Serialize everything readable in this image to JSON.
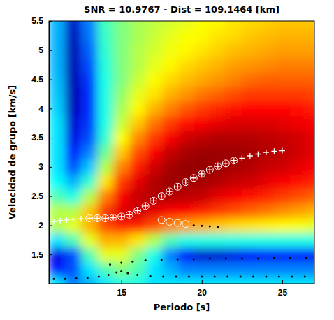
{
  "chart_data": {
    "type": "heatmap",
    "title": "SNR = 10.9767 - Dist = 109.1464 [km]",
    "x_label": "Periodo [s]",
    "y_label": "Velocidad de grupo [km/s]",
    "xlim": [
      10.5,
      27
    ],
    "ylim": [
      1,
      5.5
    ],
    "xticks": [
      15,
      20,
      25
    ],
    "yticks": [
      1.5,
      2,
      2.5,
      3,
      3.5,
      4,
      4.5,
      5,
      5.5
    ],
    "x": [
      11,
      12,
      13,
      14,
      15,
      16,
      17,
      18,
      19,
      20,
      21,
      22,
      23,
      24,
      25,
      26,
      27
    ],
    "y": [
      1,
      1.25,
      1.5,
      1.75,
      2,
      2.25,
      2.5,
      2.75,
      3,
      3.25,
      3.5,
      3.75,
      4,
      4.25,
      4.5,
      4.75,
      5,
      5.25,
      5.5
    ],
    "zlim": [
      0,
      1
    ],
    "z": [
      [
        0.35,
        0.25,
        0.3,
        0.35,
        0.4,
        0.4,
        0.35,
        0.35,
        0.35,
        0.35,
        0.35,
        0.35,
        0.35,
        0.35,
        0.35,
        0.35,
        0.35
      ],
      [
        0.15,
        0.2,
        0.35,
        0.45,
        0.5,
        0.45,
        0.35,
        0.3,
        0.25,
        0.25,
        0.25,
        0.25,
        0.25,
        0.25,
        0.25,
        0.25,
        0.25
      ],
      [
        0.1,
        0.2,
        0.45,
        0.6,
        0.6,
        0.5,
        0.4,
        0.25,
        0.12,
        0.08,
        0.08,
        0.1,
        0.12,
        0.15,
        0.15,
        0.15,
        0.15
      ],
      [
        0.35,
        0.45,
        0.6,
        0.7,
        0.7,
        0.65,
        0.55,
        0.45,
        0.4,
        0.4,
        0.4,
        0.4,
        0.4,
        0.4,
        0.4,
        0.4,
        0.4
      ],
      [
        0.55,
        0.6,
        0.7,
        0.8,
        0.85,
        0.85,
        0.8,
        0.75,
        0.72,
        0.7,
        0.68,
        0.66,
        0.65,
        0.64,
        0.63,
        0.62,
        0.6
      ],
      [
        0.55,
        0.55,
        0.68,
        0.82,
        0.9,
        0.92,
        0.9,
        0.88,
        0.87,
        0.85,
        0.82,
        0.8,
        0.78,
        0.76,
        0.74,
        0.72,
        0.7
      ],
      [
        0.45,
        0.4,
        0.55,
        0.75,
        0.88,
        0.93,
        0.95,
        0.95,
        0.94,
        0.93,
        0.9,
        0.88,
        0.86,
        0.84,
        0.82,
        0.8,
        0.78
      ],
      [
        0.38,
        0.3,
        0.42,
        0.65,
        0.82,
        0.9,
        0.95,
        0.97,
        0.97,
        0.96,
        0.95,
        0.93,
        0.92,
        0.9,
        0.88,
        0.86,
        0.84
      ],
      [
        0.35,
        0.2,
        0.32,
        0.55,
        0.75,
        0.85,
        0.92,
        0.96,
        0.98,
        0.98,
        0.97,
        0.96,
        0.95,
        0.93,
        0.92,
        0.9,
        0.88
      ],
      [
        0.35,
        0.15,
        0.25,
        0.48,
        0.68,
        0.8,
        0.88,
        0.93,
        0.96,
        0.97,
        0.97,
        0.97,
        0.96,
        0.95,
        0.94,
        0.92,
        0.9
      ],
      [
        0.35,
        0.1,
        0.2,
        0.42,
        0.62,
        0.74,
        0.82,
        0.88,
        0.92,
        0.94,
        0.95,
        0.95,
        0.95,
        0.94,
        0.93,
        0.92,
        0.9
      ],
      [
        0.35,
        0.08,
        0.18,
        0.4,
        0.57,
        0.68,
        0.76,
        0.82,
        0.86,
        0.88,
        0.9,
        0.91,
        0.91,
        0.91,
        0.9,
        0.89,
        0.88
      ],
      [
        0.33,
        0.06,
        0.17,
        0.4,
        0.54,
        0.63,
        0.7,
        0.75,
        0.79,
        0.82,
        0.84,
        0.86,
        0.87,
        0.87,
        0.87,
        0.86,
        0.85
      ],
      [
        0.32,
        0.05,
        0.17,
        0.4,
        0.52,
        0.6,
        0.65,
        0.7,
        0.73,
        0.76,
        0.78,
        0.8,
        0.82,
        0.82,
        0.82,
        0.82,
        0.81
      ],
      [
        0.31,
        0.05,
        0.18,
        0.4,
        0.5,
        0.57,
        0.62,
        0.66,
        0.69,
        0.71,
        0.73,
        0.75,
        0.77,
        0.78,
        0.78,
        0.78,
        0.78
      ],
      [
        0.3,
        0.05,
        0.2,
        0.41,
        0.5,
        0.55,
        0.6,
        0.63,
        0.66,
        0.68,
        0.7,
        0.72,
        0.73,
        0.74,
        0.75,
        0.75,
        0.75
      ],
      [
        0.3,
        0.05,
        0.22,
        0.42,
        0.5,
        0.55,
        0.58,
        0.61,
        0.63,
        0.65,
        0.67,
        0.69,
        0.7,
        0.71,
        0.72,
        0.72,
        0.72
      ],
      [
        0.3,
        0.06,
        0.24,
        0.43,
        0.5,
        0.54,
        0.57,
        0.6,
        0.62,
        0.63,
        0.65,
        0.66,
        0.68,
        0.69,
        0.7,
        0.7,
        0.7
      ],
      [
        0.3,
        0.07,
        0.25,
        0.44,
        0.5,
        0.54,
        0.56,
        0.58,
        0.6,
        0.62,
        0.63,
        0.65,
        0.66,
        0.67,
        0.68,
        0.68,
        0.68
      ]
    ],
    "series": [
      {
        "type": "scatter",
        "marker": "circle",
        "color": "#ffffff",
        "x": [
          13,
          13.5,
          14,
          14.5,
          15,
          15.5,
          16,
          16.5,
          17,
          17.5,
          18,
          18.5,
          19,
          19.5,
          20,
          20.5,
          21,
          21.5,
          22,
          17.5,
          18,
          18.5,
          19
        ],
        "values": [
          2.12,
          2.12,
          2.12,
          2.13,
          2.15,
          2.18,
          2.25,
          2.33,
          2.42,
          2.5,
          2.58,
          2.66,
          2.74,
          2.81,
          2.88,
          2.95,
          3.01,
          3.06,
          3.11,
          2.09,
          2.06,
          2.04,
          2.02
        ]
      },
      {
        "type": "scatter",
        "marker": "plus",
        "color": "#ffffff",
        "x": [
          10.8,
          11.2,
          11.6,
          12,
          12.5,
          13,
          13.5,
          14,
          14.5,
          15,
          15.5,
          16,
          16.5,
          17,
          17.5,
          18,
          18.5,
          19,
          19.5,
          20,
          20.5,
          21,
          21.5,
          22,
          22.5,
          23,
          23.5,
          24,
          24.5,
          25
        ],
        "values": [
          2.06,
          2.08,
          2.09,
          2.1,
          2.11,
          2.12,
          2.12,
          2.12,
          2.13,
          2.15,
          2.18,
          2.25,
          2.33,
          2.42,
          2.5,
          2.58,
          2.66,
          2.74,
          2.81,
          2.88,
          2.95,
          3.01,
          3.06,
          3.11,
          3.15,
          3.19,
          3.22,
          3.25,
          3.27,
          3.28
        ]
      },
      {
        "type": "scatter",
        "marker": "dot",
        "color": "#000000",
        "x": [
          10.8,
          11.5,
          12.2,
          12.9,
          13.6,
          14.2,
          14.7,
          15,
          15.4,
          16,
          16.8,
          17.6,
          18.4,
          19.2,
          20,
          20.8,
          21.6,
          22.4,
          23.2,
          24,
          24.8,
          25.6,
          26.4,
          14.3,
          15,
          15.7,
          16.5,
          17.5,
          18.5,
          19.5,
          20.5,
          21.5,
          22.5,
          23.5,
          24.5,
          25.5,
          26.5,
          19.5,
          20,
          20.5,
          21
        ],
        "values": [
          1.08,
          1.08,
          1.09,
          1.1,
          1.12,
          1.15,
          1.19,
          1.21,
          1.18,
          1.15,
          1.13,
          1.12,
          1.12,
          1.12,
          1.12,
          1.12,
          1.12,
          1.12,
          1.12,
          1.12,
          1.12,
          1.12,
          1.12,
          1.33,
          1.36,
          1.38,
          1.4,
          1.41,
          1.42,
          1.42,
          1.43,
          1.43,
          1.43,
          1.43,
          1.44,
          1.44,
          1.44,
          2.0,
          1.99,
          1.98,
          1.97
        ]
      }
    ]
  }
}
